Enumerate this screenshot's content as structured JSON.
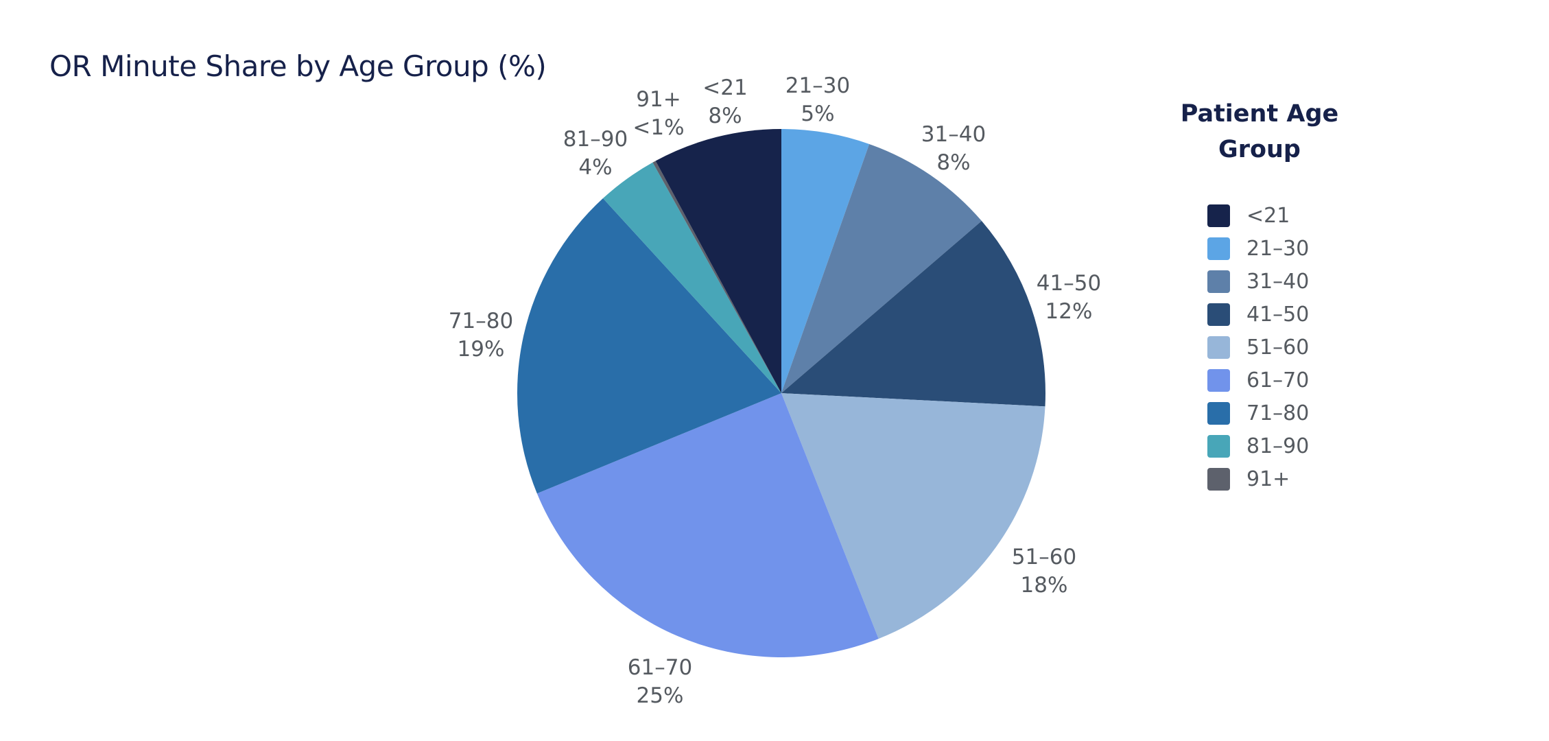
{
  "chart_data": {
    "type": "pie",
    "title": "OR Minute Share by Age Group (%)",
    "legend_title": "Patient Age Group",
    "legend_position": "right",
    "slices": [
      {
        "label": "<21",
        "value": 7.9,
        "display": "8%",
        "color": "#16234b"
      },
      {
        "label": "21–30",
        "value": 5.4,
        "display": "5%",
        "color": "#5ca5e5"
      },
      {
        "label": "31–40",
        "value": 8.3,
        "display": "8%",
        "color": "#5e80a9"
      },
      {
        "label": "41–50",
        "value": 12.1,
        "display": "12%",
        "color": "#2a4d77"
      },
      {
        "label": "51–60",
        "value": 18.2,
        "display": "18%",
        "color": "#97b6d9"
      },
      {
        "label": "61–70",
        "value": 24.8,
        "display": "25%",
        "color": "#7193eb"
      },
      {
        "label": "71–80",
        "value": 19.4,
        "display": "19%",
        "color": "#296ea9"
      },
      {
        "label": "81–90",
        "value": 3.7,
        "display": "4%",
        "color": "#48a6b8"
      },
      {
        "label": "91+",
        "value": 0.2,
        "display": "<1%",
        "color": "#5d616c"
      }
    ]
  }
}
